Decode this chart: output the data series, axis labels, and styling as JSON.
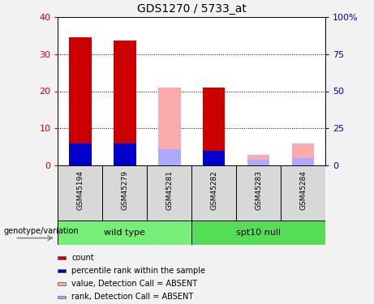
{
  "title": "GDS1270 / 5733_at",
  "samples": [
    "GSM45194",
    "GSM45279",
    "GSM45281",
    "GSM45282",
    "GSM45283",
    "GSM45284"
  ],
  "count_values": [
    34.5,
    33.5,
    0.0,
    21.0,
    0.0,
    0.0
  ],
  "rank_values": [
    6.0,
    6.0,
    0.0,
    4.0,
    0.0,
    0.0
  ],
  "absent_value_values": [
    0.0,
    0.0,
    21.0,
    0.0,
    3.0,
    6.0
  ],
  "absent_rank_values": [
    0.0,
    0.0,
    4.5,
    0.0,
    1.5,
    2.0
  ],
  "count_color": "#cc0000",
  "rank_color": "#0000cc",
  "absent_value_color": "#ffaaaa",
  "absent_rank_color": "#aaaaff",
  "ylim": [
    0,
    40
  ],
  "y2lim": [
    0,
    100
  ],
  "yticks": [
    0,
    10,
    20,
    30,
    40
  ],
  "y2ticks": [
    0,
    25,
    50,
    75,
    100
  ],
  "y2ticklabels": [
    "0",
    "25",
    "50",
    "75",
    "100%"
  ],
  "bg_color": "#f2f2f2",
  "plot_bg": "#ffffff",
  "gray_cell": "#d8d8d8",
  "green_cell": "#66ee66",
  "legend_items": [
    {
      "label": "count",
      "color": "#cc0000"
    },
    {
      "label": "percentile rank within the sample",
      "color": "#0000cc"
    },
    {
      "label": "value, Detection Call = ABSENT",
      "color": "#ffaaaa"
    },
    {
      "label": "rank, Detection Call = ABSENT",
      "color": "#aaaaff"
    }
  ],
  "bar_width": 0.5,
  "title_fontsize": 10,
  "axis_label_fontsize": 8,
  "tick_fontsize": 8,
  "sample_fontsize": 6.5,
  "group_fontsize": 8,
  "legend_fontsize": 7,
  "genotype_fontsize": 7
}
